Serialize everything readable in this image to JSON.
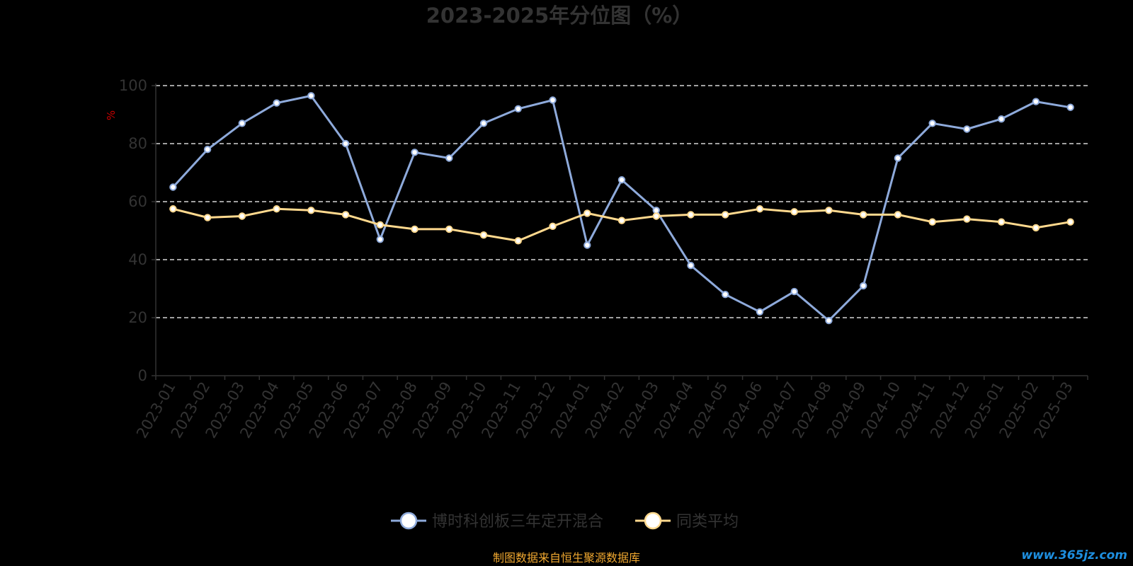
{
  "chart_data": {
    "type": "line",
    "title": "2023-2025年分位图（%）",
    "ylabel": "%",
    "xlabel": "",
    "ylim": [
      0,
      100
    ],
    "yticks": [
      0,
      20,
      40,
      60,
      80,
      100
    ],
    "grid": true,
    "legend_position": "bottom",
    "categories": [
      "2023-01",
      "2023-02",
      "2023-03",
      "2023-04",
      "2023-05",
      "2023-06",
      "2023-07",
      "2023-08",
      "2023-09",
      "2023-10",
      "2023-11",
      "2023-12",
      "2024-01",
      "2024-02",
      "2024-03",
      "2024-04",
      "2024-05",
      "2024-06",
      "2024-07",
      "2024-08",
      "2024-09",
      "2024-10",
      "2024-11",
      "2024-12",
      "2025-01",
      "2025-02",
      "2025-03"
    ],
    "series": [
      {
        "name": "博时科创板三年定开混合",
        "color": "#8eaadb",
        "values": [
          65,
          78,
          87,
          94,
          96.5,
          80,
          47,
          77,
          75,
          87,
          92,
          95,
          45,
          67.5,
          57,
          38,
          28,
          22,
          29,
          19,
          31,
          75,
          87,
          85,
          88.5,
          94.5,
          92.5
        ]
      },
      {
        "name": "同类平均",
        "color": "#ffd98e",
        "values": [
          57.5,
          54.5,
          55,
          57.5,
          57,
          55.5,
          52,
          50.5,
          50.5,
          48.5,
          46.5,
          51.5,
          56,
          53.5,
          55,
          55.5,
          55.5,
          57.5,
          56.5,
          57,
          55.5,
          55.5,
          53,
          54,
          53,
          51,
          53
        ]
      }
    ]
  },
  "source_note": "制图数据来自恒生聚源数据库",
  "watermark": "www.365jz.com",
  "colors": {
    "background": "#000000",
    "grid": "#ffffff",
    "axis": "#333333",
    "text": "#333333",
    "unit": "#cc0000",
    "source": "#f0a830",
    "watermark": "#1e8fe0"
  }
}
